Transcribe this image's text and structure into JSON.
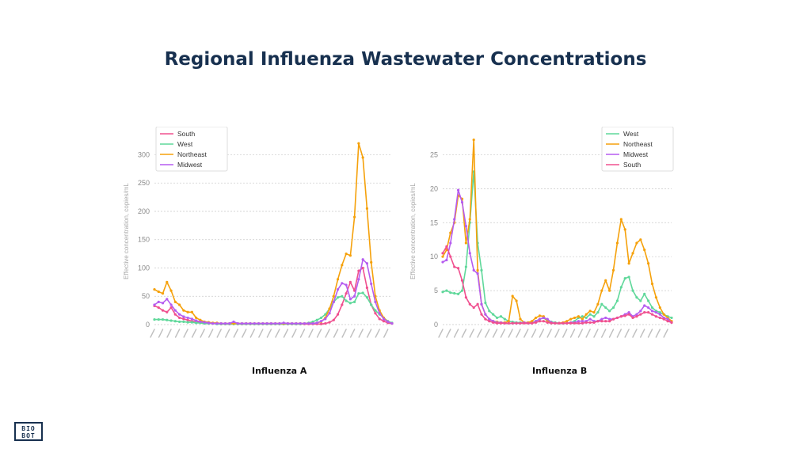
{
  "page": {
    "title": "Regional Influenza Wastewater Concentrations"
  },
  "logo": {
    "line1": "BIO",
    "line2": "BOT"
  },
  "colors": {
    "title": "#17304f",
    "South": "#f0508f",
    "West": "#5fd89a",
    "Northeast": "#f5a10b",
    "Midwest": "#b55cf0"
  },
  "chart_data": [
    {
      "type": "line",
      "title": "",
      "caption": "Influenza A",
      "xlabel": "",
      "ylabel": "Effective concentration, copies/mL",
      "ylim": [
        0,
        330
      ],
      "yticks": [
        0,
        50,
        100,
        150,
        200,
        250,
        300
      ],
      "grid": true,
      "legend": "top-left",
      "x_count": 58,
      "series": [
        {
          "name": "South",
          "color": "#f0508f",
          "values": [
            33,
            30,
            25,
            22,
            30,
            18,
            12,
            10,
            8,
            6,
            5,
            4,
            3,
            2,
            2,
            2,
            1,
            1,
            1,
            1,
            1,
            1,
            1,
            1,
            1,
            1,
            1,
            1,
            1,
            1,
            1,
            1,
            1,
            1,
            1,
            1,
            1,
            1,
            1,
            1,
            1,
            2,
            4,
            8,
            18,
            35,
            55,
            75,
            60,
            95,
            100,
            65,
            35,
            20,
            10,
            6,
            3,
            2
          ]
        },
        {
          "name": "West",
          "color": "#5fd89a",
          "values": [
            9,
            9,
            9,
            8,
            7,
            6,
            5,
            5,
            4,
            4,
            3,
            3,
            2,
            2,
            2,
            1,
            1,
            1,
            1,
            1,
            1,
            1,
            1,
            1,
            1,
            1,
            1,
            1,
            1,
            1,
            1,
            1,
            1,
            1,
            1,
            1,
            2,
            3,
            5,
            8,
            12,
            18,
            28,
            40,
            48,
            50,
            42,
            38,
            40,
            55,
            56,
            48,
            35,
            25,
            18,
            12,
            6,
            3
          ]
        },
        {
          "name": "Northeast",
          "color": "#f5a10b",
          "values": [
            62,
            58,
            55,
            75,
            60,
            40,
            35,
            25,
            22,
            22,
            12,
            8,
            5,
            4,
            3,
            3,
            2,
            2,
            2,
            2,
            2,
            2,
            2,
            2,
            2,
            2,
            2,
            2,
            2,
            2,
            2,
            2,
            2,
            2,
            2,
            2,
            2,
            2,
            2,
            3,
            5,
            12,
            28,
            50,
            80,
            105,
            125,
            122,
            190,
            320,
            295,
            205,
            110,
            50,
            25,
            12,
            5,
            2
          ]
        },
        {
          "name": "Midwest",
          "color": "#b55cf0",
          "values": [
            35,
            40,
            38,
            45,
            35,
            25,
            18,
            14,
            12,
            10,
            7,
            5,
            4,
            3,
            2,
            2,
            2,
            2,
            2,
            5,
            2,
            2,
            2,
            2,
            2,
            2,
            2,
            2,
            2,
            2,
            2,
            3,
            2,
            2,
            2,
            2,
            2,
            2,
            2,
            3,
            6,
            10,
            20,
            40,
            62,
            73,
            70,
            45,
            50,
            80,
            115,
            108,
            72,
            40,
            20,
            10,
            5,
            2
          ]
        }
      ]
    },
    {
      "type": "line",
      "title": "",
      "caption": "Influenza B",
      "xlabel": "",
      "ylabel": "Effective concentration, copies/mL",
      "ylim": [
        0,
        27.5
      ],
      "yticks": [
        0,
        5,
        10,
        15,
        20,
        25
      ],
      "grid": true,
      "legend": "top-right",
      "x_count": 60,
      "series": [
        {
          "name": "West",
          "color": "#5fd89a",
          "values": [
            4.8,
            5.0,
            4.7,
            4.6,
            4.5,
            5.0,
            8.5,
            15.0,
            22.5,
            12.0,
            8.0,
            3.2,
            2.0,
            1.5,
            1.0,
            1.2,
            0.8,
            0.5,
            0.4,
            0.3,
            0.3,
            0.3,
            0.3,
            0.3,
            0.5,
            0.8,
            1.0,
            0.5,
            0.4,
            0.3,
            0.2,
            0.2,
            0.2,
            0.3,
            0.5,
            1.0,
            1.2,
            1.0,
            1.5,
            1.2,
            1.8,
            3.0,
            2.5,
            2.0,
            2.5,
            3.5,
            5.5,
            6.8,
            7.0,
            5.0,
            4.0,
            3.5,
            4.5,
            3.5,
            2.5,
            2.0,
            1.8,
            1.5,
            1.2,
            1.0
          ]
        },
        {
          "name": "Northeast",
          "color": "#f5a10b",
          "values": [
            10.0,
            11.0,
            13.5,
            15.0,
            19.0,
            18.5,
            12.0,
            15.5,
            27.2,
            8.0,
            3.0,
            1.5,
            0.8,
            0.5,
            0.4,
            0.3,
            0.3,
            0.5,
            4.2,
            3.5,
            0.8,
            0.3,
            0.3,
            0.5,
            1.0,
            1.3,
            1.2,
            0.5,
            0.3,
            0.2,
            0.2,
            0.3,
            0.5,
            0.8,
            1.0,
            1.2,
            0.8,
            1.5,
            2.0,
            1.8,
            3.0,
            5.0,
            6.5,
            5.0,
            8.0,
            12.0,
            15.5,
            14.0,
            9.0,
            10.5,
            12.0,
            12.5,
            11.0,
            9.0,
            6.0,
            4.0,
            2.5,
            1.5,
            1.0,
            0.5
          ]
        },
        {
          "name": "Midwest",
          "color": "#b55cf0",
          "values": [
            9.2,
            9.5,
            12.0,
            15.5,
            19.8,
            18.0,
            14.5,
            10.5,
            8.0,
            7.5,
            3.0,
            1.5,
            0.8,
            0.5,
            0.3,
            0.3,
            0.2,
            0.2,
            0.2,
            0.2,
            0.2,
            0.3,
            0.2,
            0.2,
            0.5,
            0.8,
            1.0,
            0.8,
            0.3,
            0.2,
            0.2,
            0.2,
            0.2,
            0.3,
            0.3,
            0.5,
            0.5,
            0.5,
            0.8,
            0.5,
            0.5,
            0.8,
            1.0,
            0.8,
            0.8,
            1.0,
            1.2,
            1.5,
            1.8,
            1.2,
            1.5,
            2.0,
            2.8,
            2.5,
            2.0,
            1.8,
            1.5,
            1.0,
            0.8,
            0.3
          ]
        },
        {
          "name": "South",
          "color": "#f0508f",
          "values": [
            10.5,
            11.5,
            10.0,
            8.5,
            8.3,
            6.5,
            4.0,
            3.0,
            2.5,
            3.0,
            1.5,
            0.8,
            0.5,
            0.3,
            0.2,
            0.2,
            0.2,
            0.2,
            0.2,
            0.2,
            0.2,
            0.2,
            0.2,
            0.2,
            0.3,
            0.5,
            0.5,
            0.3,
            0.2,
            0.2,
            0.2,
            0.2,
            0.2,
            0.2,
            0.2,
            0.2,
            0.2,
            0.3,
            0.3,
            0.3,
            0.5,
            0.5,
            0.5,
            0.5,
            0.8,
            1.0,
            1.2,
            1.3,
            1.5,
            1.0,
            1.2,
            1.5,
            1.8,
            1.8,
            1.5,
            1.2,
            1.0,
            0.8,
            0.5,
            0.3
          ]
        }
      ]
    }
  ]
}
